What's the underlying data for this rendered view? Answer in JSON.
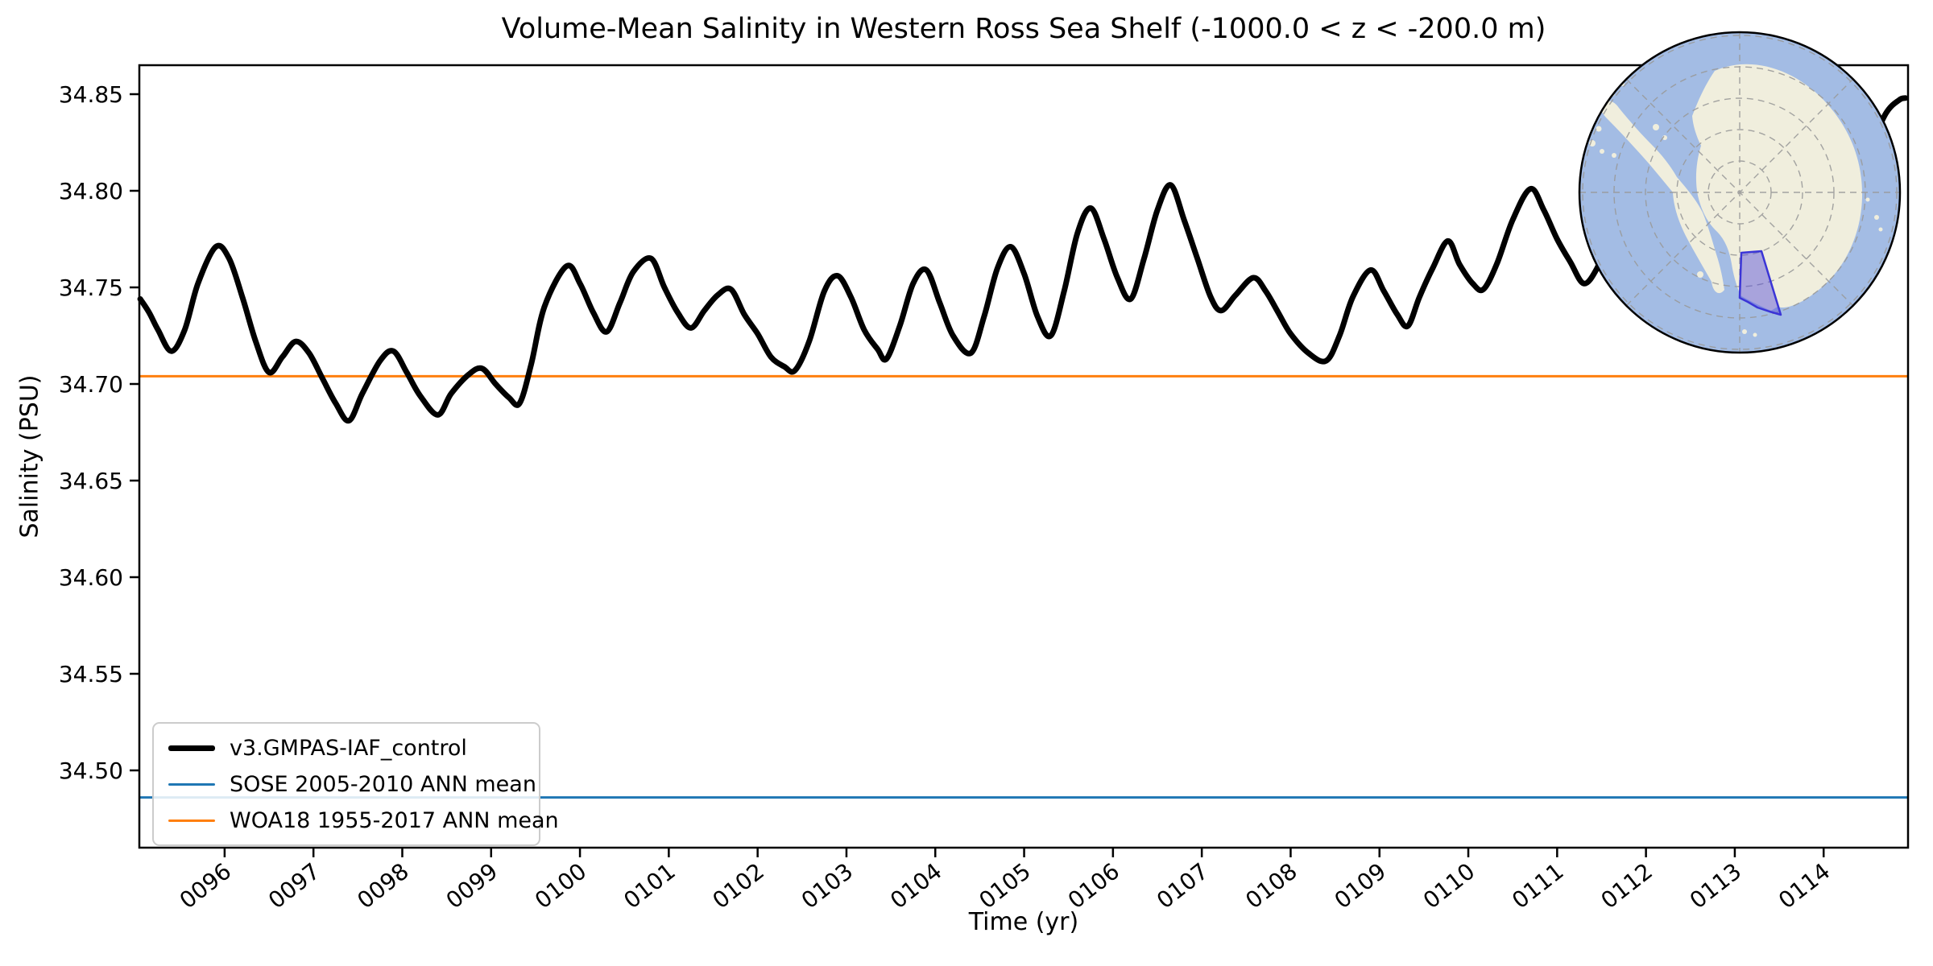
{
  "figure": {
    "title": "Volume-Mean Salinity in Western Ross Sea Shelf (-1000.0 < z < -200.0 m)",
    "xlabel": "Time (yr)",
    "ylabel": "Salinity (PSU)"
  },
  "legend": {
    "items": [
      {
        "label": "v3.GMPAS-IAF_control",
        "color": "#000000",
        "line_width": 7
      },
      {
        "label": "SOSE 2005-2010 ANN mean",
        "color": "#1f77b4",
        "line_width": 3
      },
      {
        "label": "WOA18 1955-2017 ANN mean",
        "color": "#ff7f0e",
        "line_width": 3
      }
    ]
  },
  "chart_data": {
    "type": "line",
    "title": "Volume-Mean Salinity in Western Ross Sea Shelf (-1000.0 < z < -200.0 m)",
    "xlabel": "Time (yr)",
    "ylabel": "Salinity (PSU)",
    "xlim": [
      95.04,
      114.95
    ],
    "ylim": [
      34.46,
      34.865
    ],
    "grid": false,
    "legend_position": "lower left",
    "x_ticks": {
      "values": [
        96,
        97,
        98,
        99,
        100,
        101,
        102,
        103,
        104,
        105,
        106,
        107,
        108,
        109,
        110,
        111,
        112,
        113,
        114
      ],
      "labels": [
        "0096",
        "0097",
        "0098",
        "0099",
        "0100",
        "0101",
        "0102",
        "0103",
        "0104",
        "0105",
        "0106",
        "0107",
        "0108",
        "0109",
        "0110",
        "0111",
        "0112",
        "0113",
        "0114"
      ],
      "rotation_deg": -38
    },
    "y_ticks": {
      "values": [
        34.85,
        34.8,
        34.75,
        34.7,
        34.65,
        34.6,
        34.55,
        34.5
      ],
      "labels": [
        "34.85",
        "34.80",
        "34.75",
        "34.70",
        "34.65",
        "34.60",
        "34.55",
        "34.50"
      ]
    },
    "series": [
      {
        "name": "v3.GMPAS-IAF_control",
        "color": "#000000",
        "line_width": 7,
        "points": [
          [
            95.05,
            34.744
          ],
          [
            95.15,
            34.737
          ],
          [
            95.25,
            34.728
          ],
          [
            95.4,
            34.717
          ],
          [
            95.55,
            34.728
          ],
          [
            95.7,
            34.752
          ],
          [
            95.9,
            34.771
          ],
          [
            96.05,
            34.765
          ],
          [
            96.2,
            34.745
          ],
          [
            96.35,
            34.722
          ],
          [
            96.5,
            34.706
          ],
          [
            96.65,
            34.714
          ],
          [
            96.8,
            34.722
          ],
          [
            96.95,
            34.716
          ],
          [
            97.1,
            34.703
          ],
          [
            97.25,
            34.69
          ],
          [
            97.4,
            34.681
          ],
          [
            97.55,
            34.695
          ],
          [
            97.75,
            34.712
          ],
          [
            97.9,
            34.717
          ],
          [
            98.05,
            34.706
          ],
          [
            98.2,
            34.694
          ],
          [
            98.4,
            34.684
          ],
          [
            98.55,
            34.695
          ],
          [
            98.75,
            34.705
          ],
          [
            98.9,
            34.708
          ],
          [
            99.05,
            34.7
          ],
          [
            99.2,
            34.693
          ],
          [
            99.32,
            34.69
          ],
          [
            99.45,
            34.71
          ],
          [
            99.6,
            34.74
          ],
          [
            99.85,
            34.761
          ],
          [
            100.0,
            34.752
          ],
          [
            100.15,
            34.737
          ],
          [
            100.3,
            34.727
          ],
          [
            100.45,
            34.742
          ],
          [
            100.6,
            34.758
          ],
          [
            100.8,
            34.765
          ],
          [
            100.95,
            34.75
          ],
          [
            101.1,
            34.737
          ],
          [
            101.25,
            34.729
          ],
          [
            101.4,
            34.738
          ],
          [
            101.55,
            34.746
          ],
          [
            101.7,
            34.749
          ],
          [
            101.85,
            34.736
          ],
          [
            102.0,
            34.726
          ],
          [
            102.15,
            34.714
          ],
          [
            102.3,
            34.709
          ],
          [
            102.42,
            34.707
          ],
          [
            102.58,
            34.722
          ],
          [
            102.75,
            34.748
          ],
          [
            102.9,
            34.756
          ],
          [
            103.05,
            34.745
          ],
          [
            103.2,
            34.728
          ],
          [
            103.35,
            34.718
          ],
          [
            103.45,
            34.713
          ],
          [
            103.6,
            34.73
          ],
          [
            103.75,
            34.752
          ],
          [
            103.9,
            34.759
          ],
          [
            104.05,
            34.742
          ],
          [
            104.2,
            34.725
          ],
          [
            104.4,
            34.716
          ],
          [
            104.55,
            34.735
          ],
          [
            104.7,
            34.76
          ],
          [
            104.85,
            34.771
          ],
          [
            105.0,
            34.757
          ],
          [
            105.15,
            34.735
          ],
          [
            105.3,
            34.725
          ],
          [
            105.45,
            34.748
          ],
          [
            105.6,
            34.778
          ],
          [
            105.75,
            34.791
          ],
          [
            105.9,
            34.775
          ],
          [
            106.05,
            34.755
          ],
          [
            106.2,
            34.744
          ],
          [
            106.35,
            34.765
          ],
          [
            106.5,
            34.79
          ],
          [
            106.65,
            34.803
          ],
          [
            106.8,
            34.785
          ],
          [
            106.95,
            34.765
          ],
          [
            107.1,
            34.745
          ],
          [
            107.22,
            34.738
          ],
          [
            107.38,
            34.746
          ],
          [
            107.58,
            34.755
          ],
          [
            107.72,
            34.748
          ],
          [
            107.86,
            34.737
          ],
          [
            108.0,
            34.726
          ],
          [
            108.2,
            34.716
          ],
          [
            108.4,
            34.712
          ],
          [
            108.55,
            34.725
          ],
          [
            108.7,
            34.745
          ],
          [
            108.9,
            34.759
          ],
          [
            109.05,
            34.748
          ],
          [
            109.2,
            34.736
          ],
          [
            109.32,
            34.73
          ],
          [
            109.45,
            34.745
          ],
          [
            109.6,
            34.76
          ],
          [
            109.77,
            34.774
          ],
          [
            109.9,
            34.762
          ],
          [
            110.05,
            34.752
          ],
          [
            110.17,
            34.749
          ],
          [
            110.32,
            34.762
          ],
          [
            110.5,
            34.785
          ],
          [
            110.7,
            34.801
          ],
          [
            110.85,
            34.79
          ],
          [
            111.0,
            34.775
          ],
          [
            111.15,
            34.763
          ],
          [
            111.3,
            34.752
          ],
          [
            111.45,
            34.76
          ],
          [
            111.6,
            34.778
          ],
          [
            111.75,
            34.79
          ],
          [
            111.9,
            34.775
          ],
          [
            112.05,
            34.762
          ],
          [
            112.2,
            34.755
          ],
          [
            112.35,
            34.768
          ],
          [
            112.5,
            34.785
          ],
          [
            112.7,
            34.798
          ],
          [
            112.85,
            34.785
          ],
          [
            113.0,
            34.775
          ],
          [
            113.15,
            34.768
          ],
          [
            113.3,
            34.778
          ],
          [
            113.5,
            34.8
          ],
          [
            113.7,
            34.815
          ],
          [
            113.85,
            34.805
          ],
          [
            114.0,
            34.792
          ],
          [
            114.15,
            34.788
          ],
          [
            114.3,
            34.8
          ],
          [
            114.5,
            34.82
          ],
          [
            114.7,
            34.84
          ],
          [
            114.85,
            34.847
          ],
          [
            114.92,
            34.848
          ]
        ]
      }
    ],
    "reference_lines": [
      {
        "name": "WOA18 1955-2017 ANN mean",
        "value": 34.704,
        "color": "#ff7f0e",
        "line_width": 3
      },
      {
        "name": "SOSE 2005-2010 ANN mean",
        "value": 34.486,
        "color": "#1f77b4",
        "line_width": 3
      }
    ]
  },
  "inset_map": {
    "description": "South polar stereographic map of Antarctica with Western Ross Sea shelf region highlighted",
    "ocean_color": "#a3bce4",
    "land_color": "#f0eedd",
    "region_fill_color": "#5046dc",
    "region_fill_opacity": 0.45,
    "region_edge_color": "#3b35d6",
    "graticule_color": "#9a9a9a",
    "border_color": "#000000"
  }
}
